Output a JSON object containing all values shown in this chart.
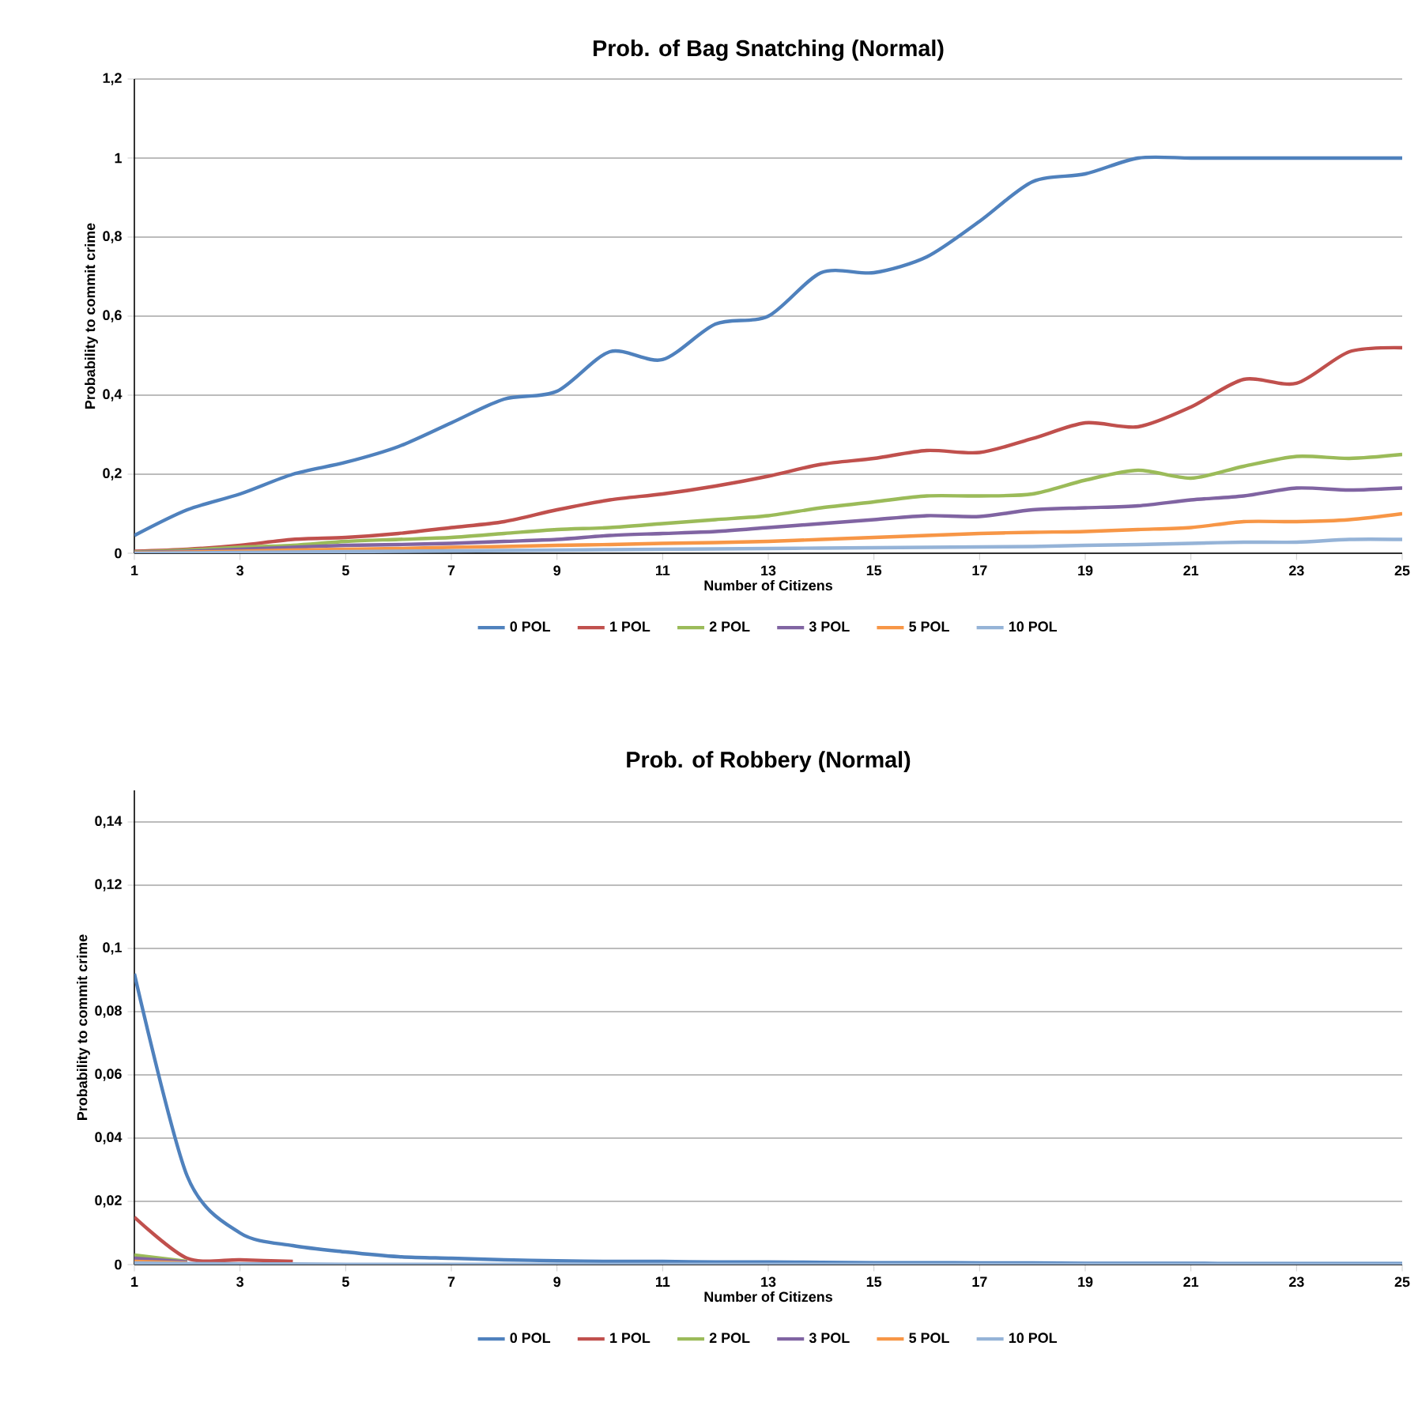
{
  "chart_data": [
    {
      "type": "line",
      "title": "Prob. of Bag Snatching (Normal)",
      "xlabel": "Number of Citizens",
      "ylabel": "Probability to commit crime",
      "x": [
        1,
        2,
        3,
        4,
        5,
        6,
        7,
        8,
        9,
        10,
        11,
        12,
        13,
        14,
        15,
        16,
        17,
        18,
        19,
        20,
        21,
        22,
        23,
        24,
        25
      ],
      "xlim": [
        1,
        25
      ],
      "xticks": [
        1,
        3,
        5,
        7,
        9,
        11,
        13,
        15,
        17,
        19,
        21,
        23,
        25
      ],
      "ylim": [
        0,
        1.2
      ],
      "yticks": [
        0,
        {
          "value": 0.2,
          "label": "0,2"
        },
        {
          "value": 0.4,
          "label": "0,4"
        },
        {
          "value": 0.6,
          "label": "0,6"
        },
        {
          "value": 0.8,
          "label": "0,8"
        },
        1,
        {
          "value": 1.2,
          "label": "1,2"
        }
      ],
      "grid": "y",
      "legend": "bottom",
      "series": [
        {
          "name": "0 POL",
          "color": "#4f81bd",
          "values": [
            0.045,
            0.11,
            0.15,
            0.2,
            0.23,
            0.27,
            0.33,
            0.39,
            0.41,
            0.51,
            0.49,
            0.58,
            0.6,
            0.71,
            0.71,
            0.75,
            0.84,
            0.94,
            0.96,
            1.0,
            1.0,
            1.0,
            1.0,
            1.0,
            1.0
          ]
        },
        {
          "name": "1 POL",
          "color": "#c0504d",
          "values": [
            0.005,
            0.01,
            0.02,
            0.035,
            0.04,
            0.05,
            0.065,
            0.08,
            0.11,
            0.135,
            0.15,
            0.17,
            0.195,
            0.225,
            0.24,
            0.26,
            0.255,
            0.29,
            0.33,
            0.32,
            0.37,
            0.44,
            0.43,
            0.51,
            0.52
          ]
        },
        {
          "name": "2 POL",
          "color": "#9bbb59",
          "values": [
            0.003,
            0.008,
            0.015,
            0.02,
            0.03,
            0.035,
            0.04,
            0.05,
            0.06,
            0.065,
            0.075,
            0.085,
            0.095,
            0.115,
            0.13,
            0.145,
            0.145,
            0.15,
            0.185,
            0.21,
            0.19,
            0.22,
            0.245,
            0.24,
            0.25
          ]
        },
        {
          "name": "3 POL",
          "color": "#8064a2",
          "values": [
            0.002,
            0.005,
            0.01,
            0.015,
            0.02,
            0.022,
            0.025,
            0.03,
            0.035,
            0.045,
            0.05,
            0.055,
            0.065,
            0.075,
            0.085,
            0.095,
            0.093,
            0.11,
            0.115,
            0.12,
            0.135,
            0.145,
            0.165,
            0.16,
            0.165
          ]
        },
        {
          "name": "5 POL",
          "color": "#f79646",
          "values": [
            0.001,
            0.003,
            0.005,
            0.008,
            0.01,
            0.012,
            0.015,
            0.017,
            0.02,
            0.022,
            0.025,
            0.027,
            0.03,
            0.035,
            0.04,
            0.045,
            0.05,
            0.053,
            0.055,
            0.06,
            0.065,
            0.08,
            0.08,
            0.085,
            0.1
          ]
        },
        {
          "name": "10 POL",
          "color": "#95b3d7",
          "values": [
            0.0,
            0.001,
            0.002,
            0.003,
            0.004,
            0.005,
            0.006,
            0.007,
            0.008,
            0.009,
            0.01,
            0.011,
            0.012,
            0.013,
            0.014,
            0.015,
            0.016,
            0.017,
            0.02,
            0.022,
            0.025,
            0.028,
            0.028,
            0.035,
            0.035
          ]
        }
      ]
    },
    {
      "type": "line",
      "title": "Prob. of Robbery (Normal)",
      "xlabel": "Number of Citizens",
      "ylabel": "Probability to commit crime",
      "x": [
        1,
        2,
        3,
        4,
        5,
        6,
        7,
        8,
        9,
        10,
        11,
        12,
        13,
        14,
        15,
        16,
        17,
        18,
        19,
        20,
        21,
        22,
        23,
        24,
        25
      ],
      "xlim": [
        1,
        25
      ],
      "xticks": [
        1,
        3,
        5,
        7,
        9,
        11,
        13,
        15,
        17,
        19,
        21,
        23,
        25
      ],
      "ylim": [
        0,
        0.15
      ],
      "yticks": [
        0,
        {
          "value": 0.02,
          "label": "0,02"
        },
        {
          "value": 0.04,
          "label": "0,04"
        },
        {
          "value": 0.06,
          "label": "0,06"
        },
        {
          "value": 0.08,
          "label": "0,08"
        },
        {
          "value": 0.1,
          "label": "0,1"
        },
        {
          "value": 0.12,
          "label": "0,12"
        },
        {
          "value": 0.14,
          "label": "0,14"
        }
      ],
      "grid": "y",
      "legend": "bottom",
      "series": [
        {
          "name": "0 POL",
          "color": "#4f81bd",
          "values": [
            0.092,
            0.028,
            0.01,
            0.006,
            0.004,
            0.0025,
            0.002,
            0.0015,
            0.0012,
            0.001,
            0.001,
            0.0008,
            0.0008,
            0.0007,
            0.0006,
            0.0006,
            0.0005,
            0.0005,
            0.0004,
            0.0004,
            0.0004,
            0.0003,
            0.0003,
            0.0003,
            0.0003
          ]
        },
        {
          "name": "1 POL",
          "color": "#c0504d",
          "values": [
            0.015,
            0.002,
            0.0015,
            0.001,
            null,
            null,
            null,
            null,
            null,
            null,
            null,
            null,
            null,
            null,
            null,
            null,
            null,
            null,
            null,
            null,
            null,
            null,
            null,
            null,
            null
          ]
        },
        {
          "name": "2 POL",
          "color": "#9bbb59",
          "values": [
            0.003,
            0.001,
            null,
            null,
            null,
            null,
            null,
            null,
            null,
            null,
            null,
            null,
            null,
            null,
            null,
            null,
            null,
            null,
            null,
            null,
            null,
            null,
            null,
            null,
            null
          ]
        },
        {
          "name": "3 POL",
          "color": "#8064a2",
          "values": [
            0.002,
            0.0008,
            null,
            null,
            null,
            null,
            null,
            null,
            null,
            null,
            null,
            null,
            null,
            null,
            null,
            null,
            null,
            null,
            null,
            null,
            null,
            null,
            null,
            null,
            null
          ]
        },
        {
          "name": "5 POL",
          "color": "#f79646",
          "values": [
            0.001,
            0.0005,
            null,
            null,
            null,
            null,
            null,
            null,
            null,
            null,
            null,
            null,
            null,
            null,
            null,
            null,
            null,
            null,
            null,
            null,
            null,
            null,
            null,
            null,
            null
          ]
        },
        {
          "name": "10 POL",
          "color": "#95b3d7",
          "values": [
            0.0005,
            0.0003,
            0.0002,
            0.0002,
            0.0001,
            0.0001,
            0.0001,
            0.0001,
            0.0001,
            0.0001,
            0.0001,
            0.0001,
            0.0001,
            0.0001,
            0.0001,
            0.0001,
            0.0001,
            0.0001,
            0.0001,
            0.0001,
            0.0001,
            0.0001,
            0.0001,
            0.0001,
            0.0001
          ]
        }
      ]
    }
  ]
}
